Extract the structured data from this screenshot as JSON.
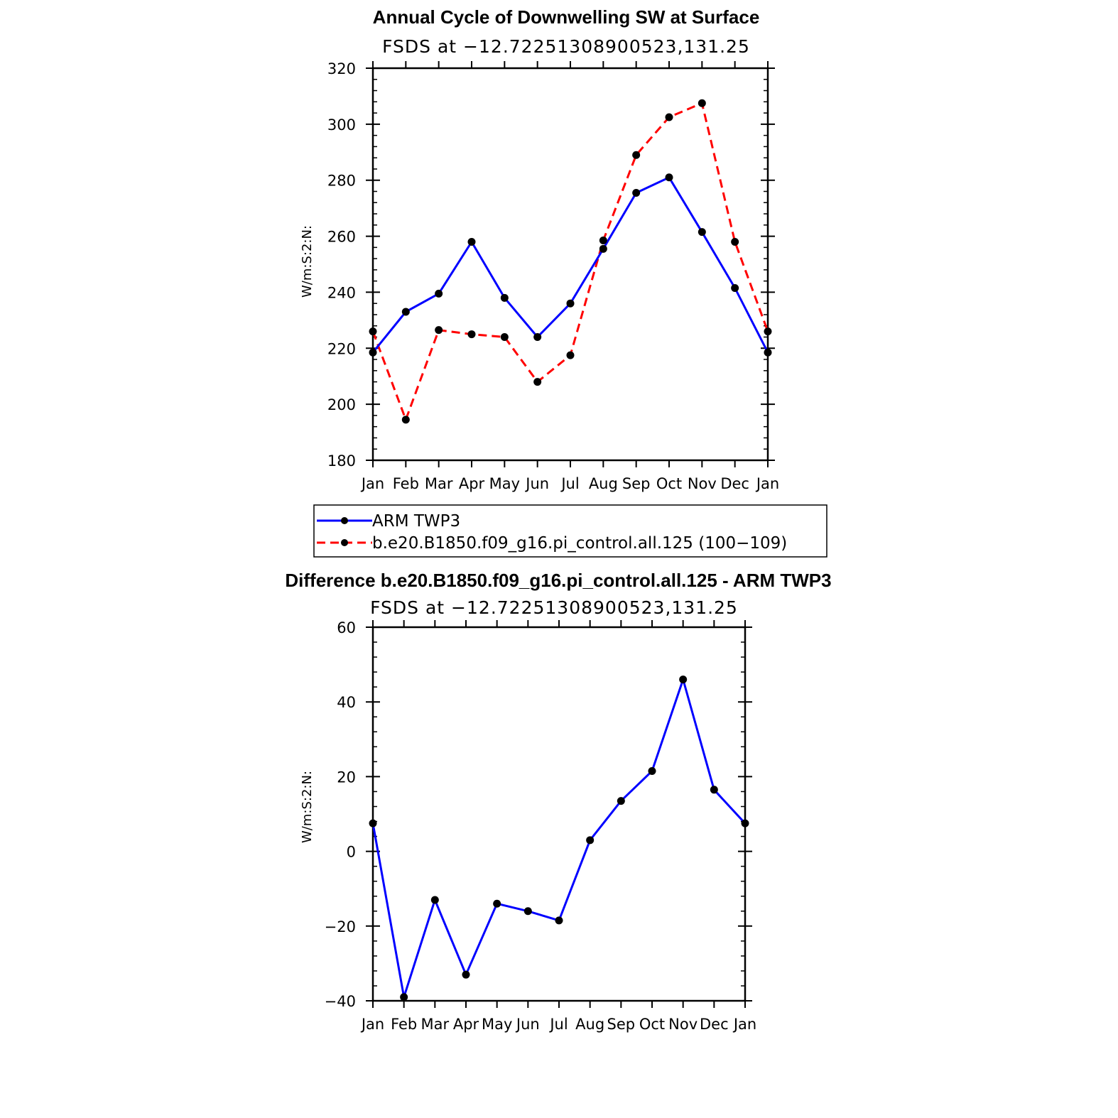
{
  "chart_data": [
    {
      "type": "line",
      "title": "Annual Cycle of Downwelling SW at Surface",
      "subtitle": "FSDS at −12.72251308900523,131.25",
      "xlabel": "",
      "ylabel": "W/m:S:2:N:",
      "categories": [
        "Jan",
        "Feb",
        "Mar",
        "Apr",
        "May",
        "Jun",
        "Jul",
        "Aug",
        "Sep",
        "Oct",
        "Nov",
        "Dec",
        "Jan"
      ],
      "ylim": [
        180,
        320
      ],
      "yticks": [
        "180",
        "200",
        "220",
        "240",
        "260",
        "280",
        "300",
        "320"
      ],
      "series": [
        {
          "name": "ARM TWP3",
          "color": "#0000ff",
          "dash": "solid",
          "values": [
            218.5,
            233,
            239.5,
            258,
            238,
            224,
            236,
            255.5,
            275.5,
            281,
            261.5,
            241.5,
            218.5
          ]
        },
        {
          "name": "b.e20.B1850.f09_g16.pi_control.all.125 (100−109)",
          "color": "#ff0000",
          "dash": "dashed",
          "values": [
            226,
            194.5,
            226.5,
            225,
            224,
            208,
            217.5,
            258.5,
            289,
            302.5,
            307.5,
            258,
            226
          ]
        }
      ],
      "legend": {
        "position": "below",
        "entries": [
          "ARM TWP3",
          "b.e20.B1850.f09_g16.pi_control.all.125 (100−109)"
        ]
      }
    },
    {
      "type": "line",
      "title": "Difference b.e20.B1850.f09_g16.pi_control.all.125 - ARM TWP3",
      "subtitle": "FSDS at −12.72251308900523,131.25",
      "xlabel": "",
      "ylabel": "W/m:S:2:N:",
      "categories": [
        "Jan",
        "Feb",
        "Mar",
        "Apr",
        "May",
        "Jun",
        "Jul",
        "Aug",
        "Sep",
        "Oct",
        "Nov",
        "Dec",
        "Jan"
      ],
      "ylim": [
        -40,
        60
      ],
      "yticks": [
        "−40",
        "−20",
        "0",
        "20",
        "40",
        "60"
      ],
      "series": [
        {
          "name": "Difference",
          "color": "#0000ff",
          "dash": "solid",
          "values": [
            7.5,
            -39,
            -13,
            -33,
            -14,
            -16,
            -18.5,
            3,
            13.5,
            21.5,
            46,
            16.5,
            7.5
          ]
        }
      ]
    }
  ]
}
